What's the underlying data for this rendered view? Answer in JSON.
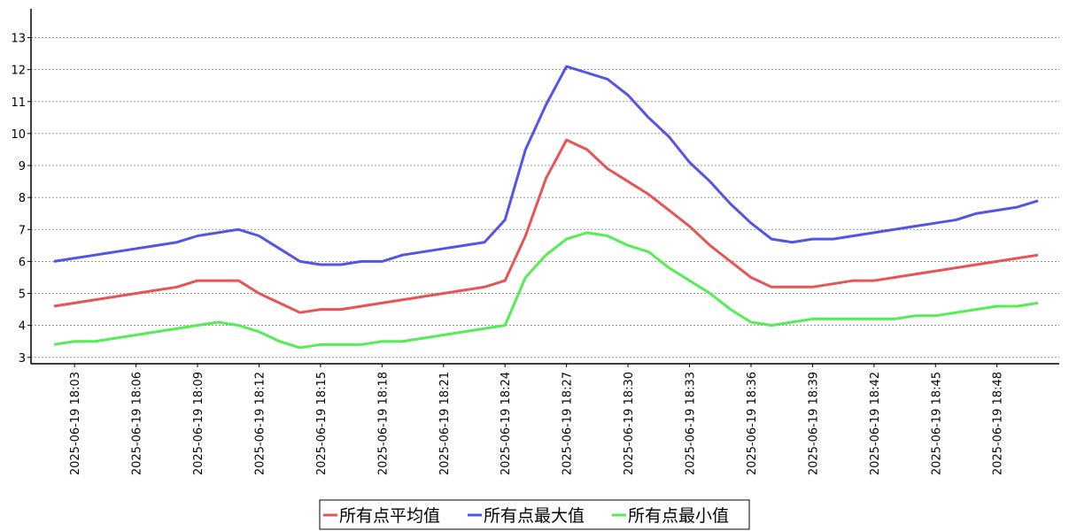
{
  "chart_data": {
    "type": "line",
    "categories": [
      null,
      "2025-06-19 18:03",
      null,
      null,
      "2025-06-19 18:06",
      null,
      null,
      "2025-06-19 18:09",
      null,
      null,
      "2025-06-19 18:12",
      null,
      null,
      "2025-06-19 18:15",
      null,
      null,
      "2025-06-19 18:18",
      null,
      null,
      "2025-06-19 18:21",
      null,
      null,
      "2025-06-19 18:24",
      null,
      null,
      "2025-06-19 18:27",
      null,
      null,
      "2025-06-19 18:30",
      null,
      null,
      "2025-06-19 18:33",
      null,
      null,
      "2025-06-19 18:36",
      null,
      null,
      "2025-06-19 18:39",
      null,
      null,
      "2025-06-19 18:42",
      null,
      null,
      "2025-06-19 18:45",
      null,
      null,
      "2025-06-19 18:48",
      null,
      null
    ],
    "series": [
      {
        "name": "所有点平均值",
        "color": "#e85454",
        "values": [
          4.6,
          4.7,
          4.8,
          4.9,
          5.0,
          5.1,
          5.2,
          5.4,
          5.4,
          5.4,
          5.0,
          4.7,
          4.4,
          4.5,
          4.5,
          4.6,
          4.7,
          4.8,
          4.9,
          5.0,
          5.1,
          5.2,
          5.4,
          6.8,
          8.6,
          9.8,
          9.5,
          8.9,
          8.5,
          8.1,
          7.6,
          7.1,
          6.5,
          6.0,
          5.5,
          5.2,
          5.2,
          5.2,
          5.3,
          5.4,
          5.4,
          5.5,
          5.6,
          5.7,
          5.8,
          5.9,
          6.0,
          6.1,
          6.2
        ]
      },
      {
        "name": "所有点最大值",
        "color": "#5454e8",
        "values": [
          6.0,
          6.1,
          6.2,
          6.3,
          6.4,
          6.5,
          6.6,
          6.8,
          6.9,
          7.0,
          6.8,
          6.4,
          6.0,
          5.9,
          5.9,
          6.0,
          6.0,
          6.2,
          6.3,
          6.4,
          6.5,
          6.6,
          7.3,
          9.5,
          10.9,
          12.1,
          11.9,
          11.7,
          11.2,
          10.5,
          9.9,
          9.1,
          8.5,
          7.8,
          7.2,
          6.7,
          6.6,
          6.7,
          6.7,
          6.8,
          6.9,
          7.0,
          7.1,
          7.2,
          7.3,
          7.5,
          7.6,
          7.7,
          7.9
        ]
      },
      {
        "name": "所有点最小值",
        "color": "#54ee54",
        "values": [
          3.4,
          3.5,
          3.5,
          3.6,
          3.7,
          3.8,
          3.9,
          4.0,
          4.1,
          4.0,
          3.8,
          3.5,
          3.3,
          3.4,
          3.4,
          3.4,
          3.5,
          3.5,
          3.6,
          3.7,
          3.8,
          3.9,
          4.0,
          5.5,
          6.2,
          6.7,
          6.9,
          6.8,
          6.5,
          6.3,
          5.8,
          5.4,
          5.0,
          4.5,
          4.1,
          4.0,
          4.1,
          4.2,
          4.2,
          4.2,
          4.2,
          4.2,
          4.3,
          4.3,
          4.4,
          4.5,
          4.6,
          4.6,
          4.7
        ]
      }
    ],
    "ylim": [
      2.8,
      13.9
    ],
    "yticks": [
      3,
      4,
      5,
      6,
      7,
      8,
      9,
      10,
      11,
      12,
      13
    ],
    "grid": true,
    "legend": "bottom"
  }
}
